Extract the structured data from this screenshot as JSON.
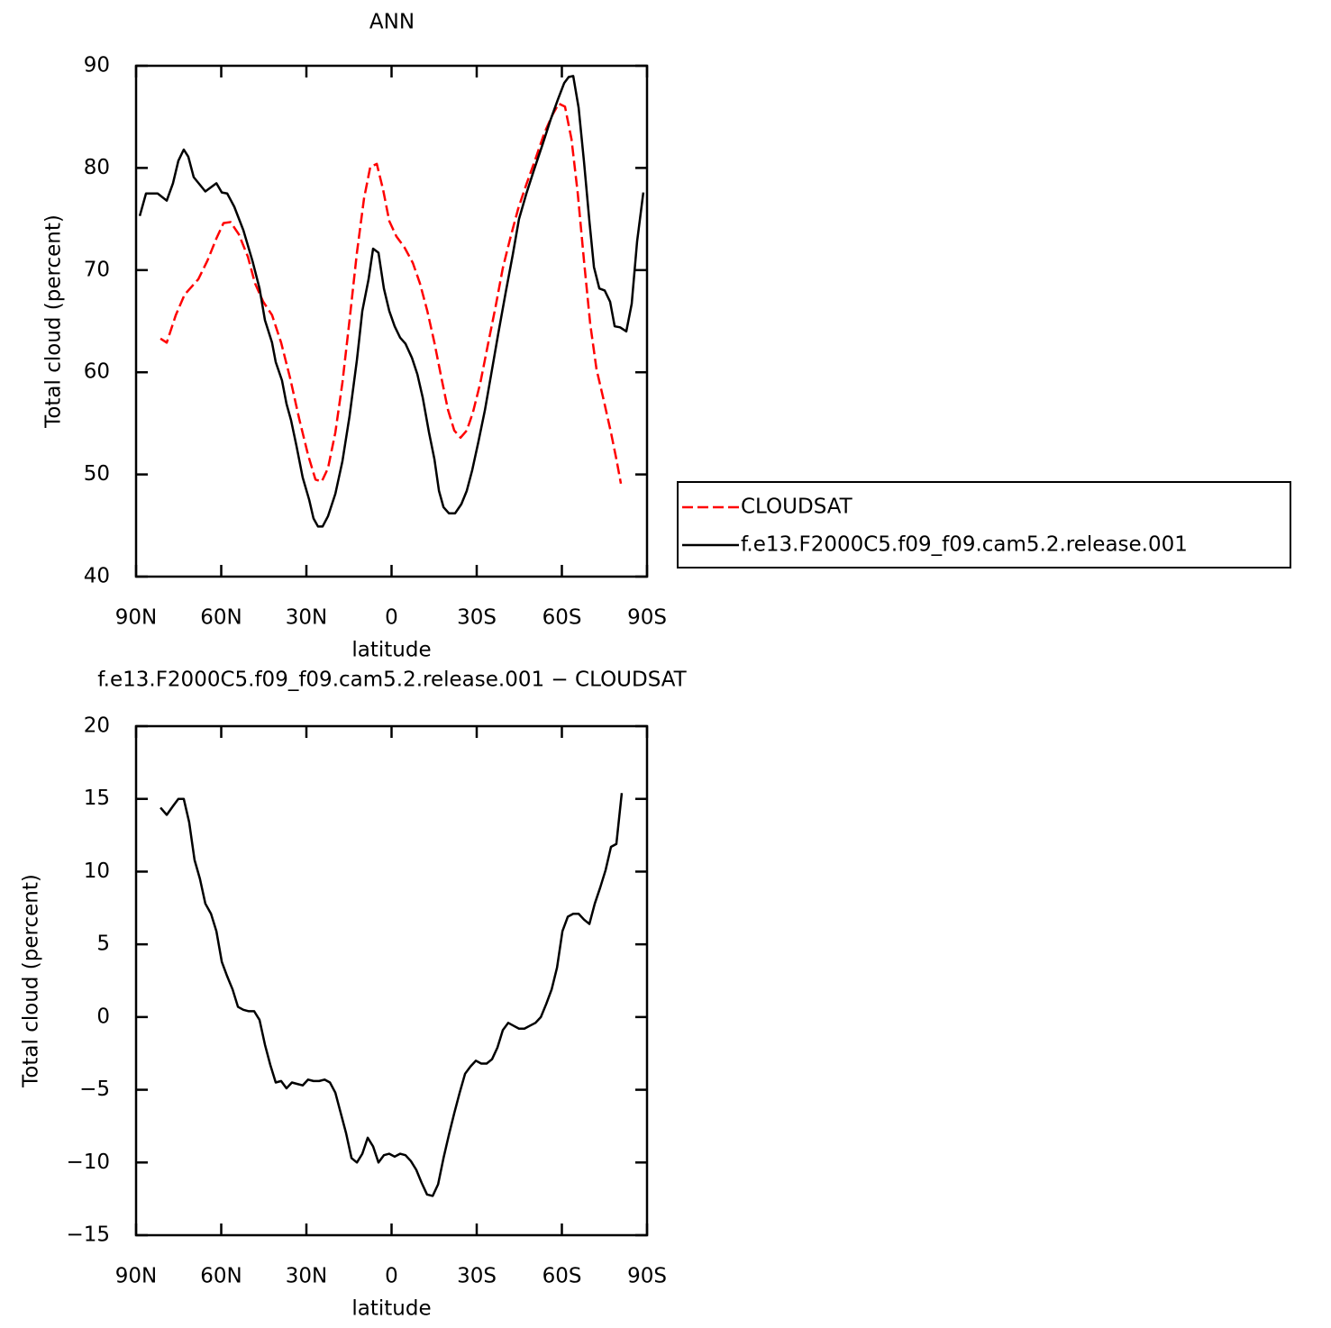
{
  "chart_data": [
    {
      "type": "line",
      "title": "ANN",
      "xlabel": "latitude",
      "ylabel": "Total cloud (percent)",
      "xlim": [
        90,
        -90
      ],
      "ylim": [
        40,
        90
      ],
      "xticks": [
        {
          "value": 90,
          "label": "90N"
        },
        {
          "value": 60,
          "label": "60N"
        },
        {
          "value": 30,
          "label": "30N"
        },
        0,
        {
          "value": -30,
          "label": "30S"
        },
        {
          "value": -60,
          "label": "60S"
        },
        {
          "value": -90,
          "label": "90S"
        }
      ],
      "yticks": [
        40,
        50,
        60,
        70,
        80,
        90
      ],
      "legend": "right",
      "series": [
        {
          "name": "CLOUDSAT",
          "color": "#ff0000",
          "linestyle": "dashed",
          "x": [
            81.4,
            79.2,
            76.0,
            72.9,
            68.1,
            64.9,
            61.7,
            59.2,
            56.7,
            53.8,
            50.6,
            48.1,
            45.2,
            42.1,
            38.9,
            35.7,
            32.5,
            29.4,
            26.8,
            24.6,
            22.4,
            19.8,
            17.3,
            14.8,
            12.2,
            9.7,
            7.5,
            5.2,
            3.0,
            0.8,
            -1.7,
            -4.6,
            -7.5,
            -10.0,
            -12.6,
            -15.1,
            -17.6,
            -19.9,
            -22.1,
            -24.3,
            -26.5,
            -28.7,
            -31.3,
            -33.8,
            -36.7,
            -39.2,
            -41.8,
            -44.6,
            -47.5,
            -50.6,
            -53.8,
            -56.7,
            -58.9,
            -61.1,
            -63.4,
            -65.6,
            -67.8,
            -70.0,
            -72.2,
            -74.8,
            -77.3,
            -79.2,
            -80.8
          ],
          "values": [
            63.3,
            62.9,
            65.6,
            67.6,
            69.1,
            70.9,
            73.1,
            74.6,
            74.7,
            73.5,
            71.3,
            68.7,
            66.9,
            65.6,
            62.9,
            59.4,
            55.4,
            51.9,
            49.5,
            49.3,
            50.6,
            54.1,
            59.0,
            65.1,
            71.7,
            77.0,
            80.1,
            80.4,
            77.9,
            74.8,
            73.3,
            72.2,
            70.7,
            68.7,
            66.0,
            62.9,
            59.4,
            56.3,
            54.3,
            53.6,
            54.3,
            56.1,
            59.0,
            62.5,
            66.5,
            70.2,
            73.1,
            76.0,
            78.4,
            80.8,
            83.4,
            85.2,
            86.3,
            86.0,
            82.8,
            77.5,
            70.9,
            64.7,
            60.3,
            57.2,
            54.1,
            51.5,
            49.1
          ]
        },
        {
          "name": "f.e13.F2000C5.f09_f09.cam5.2.release.001",
          "color": "#000000",
          "linestyle": "solid",
          "x": [
            88.7,
            86.5,
            82.4,
            79.2,
            77.0,
            75.1,
            73.2,
            71.6,
            69.7,
            65.6,
            61.7,
            59.8,
            57.9,
            55.4,
            52.2,
            49.0,
            46.5,
            44.6,
            42.1,
            40.8,
            38.6,
            37.0,
            35.4,
            33.5,
            31.3,
            29.0,
            27.5,
            25.9,
            24.3,
            22.4,
            19.8,
            17.3,
            14.8,
            12.2,
            10.3,
            8.1,
            6.5,
            4.6,
            2.7,
            0.8,
            -1.1,
            -3.0,
            -4.9,
            -7.2,
            -9.1,
            -11.0,
            -13.2,
            -15.1,
            -16.7,
            -18.3,
            -20.2,
            -22.4,
            -24.6,
            -26.5,
            -28.4,
            -30.6,
            -32.9,
            -35.1,
            -37.6,
            -40.2,
            -42.7,
            -44.9,
            -47.5,
            -50.3,
            -53.2,
            -56.0,
            -58.6,
            -60.8,
            -62.4,
            -64.0,
            -65.9,
            -67.8,
            -69.7,
            -71.3,
            -73.2,
            -75.1,
            -77.0,
            -78.6,
            -80.5,
            -82.7,
            -84.6,
            -86.5,
            -88.7
          ],
          "values": [
            75.3,
            77.5,
            77.5,
            76.8,
            78.5,
            80.7,
            81.8,
            81.1,
            79.1,
            77.7,
            78.5,
            77.6,
            77.5,
            76.2,
            73.9,
            70.9,
            68.2,
            65.1,
            62.9,
            61.0,
            59.2,
            56.9,
            55.3,
            52.8,
            49.7,
            47.5,
            45.7,
            44.9,
            44.9,
            45.9,
            48.1,
            51.3,
            55.7,
            61.2,
            66.0,
            69.1,
            72.1,
            71.7,
            68.2,
            66.0,
            64.5,
            63.4,
            62.8,
            61.4,
            59.8,
            57.5,
            54.1,
            51.5,
            48.4,
            46.8,
            46.2,
            46.2,
            47.1,
            48.4,
            50.4,
            53.2,
            56.3,
            59.8,
            63.8,
            67.8,
            71.5,
            75.0,
            77.5,
            79.9,
            82.3,
            84.7,
            86.7,
            88.3,
            88.9,
            89.0,
            85.9,
            80.6,
            74.8,
            70.3,
            68.2,
            68.0,
            66.9,
            64.5,
            64.4,
            64.0,
            66.7,
            72.8,
            77.6
          ]
        }
      ]
    },
    {
      "type": "line",
      "title": "f.e13.F2000C5.f09_f09.cam5.2.release.001 − CLOUDSAT",
      "xlabel": "latitude",
      "ylabel": "Total cloud (percent)",
      "xlim": [
        90,
        -90
      ],
      "ylim": [
        -15,
        20
      ],
      "xticks": [
        {
          "value": 90,
          "label": "90N"
        },
        {
          "value": 60,
          "label": "60N"
        },
        {
          "value": 30,
          "label": "30N"
        },
        0,
        {
          "value": -30,
          "label": "30S"
        },
        {
          "value": -60,
          "label": "60S"
        },
        {
          "value": -90,
          "label": "90S"
        }
      ],
      "yticks": [
        {
          "value": -15,
          "label": "−15"
        },
        {
          "value": -10,
          "label": "−10"
        },
        {
          "value": -5,
          "label": "−5"
        },
        0,
        5,
        10,
        15,
        20
      ],
      "color": "#000000",
      "x": [
        81.4,
        79.2,
        77.0,
        75.1,
        73.2,
        71.3,
        69.4,
        67.5,
        65.6,
        63.6,
        61.7,
        59.8,
        57.9,
        56.0,
        54.1,
        52.2,
        50.3,
        48.4,
        46.5,
        44.6,
        42.7,
        40.8,
        38.9,
        37.0,
        35.1,
        33.2,
        31.3,
        29.4,
        27.5,
        25.5,
        23.6,
        21.7,
        19.8,
        17.9,
        16.0,
        14.1,
        12.2,
        10.3,
        8.4,
        6.5,
        4.6,
        2.7,
        0.8,
        -1.1,
        -3.0,
        -4.9,
        -6.8,
        -8.7,
        -10.6,
        -12.5,
        -14.5,
        -16.4,
        -18.3,
        -20.2,
        -22.1,
        -24.0,
        -25.9,
        -27.8,
        -29.7,
        -31.6,
        -33.5,
        -35.4,
        -37.3,
        -39.2,
        -41.1,
        -43.0,
        -44.9,
        -46.8,
        -48.7,
        -50.7,
        -52.6,
        -54.5,
        -56.4,
        -58.3,
        -60.2,
        -62.1,
        -64.0,
        -65.9,
        -67.8,
        -69.7,
        -71.6,
        -73.5,
        -75.4,
        -77.3,
        -79.2,
        -81.1
      ],
      "values": [
        14.4,
        13.9,
        14.5,
        15.0,
        15.0,
        13.4,
        10.8,
        9.5,
        7.8,
        7.1,
        5.9,
        3.8,
        2.8,
        1.9,
        0.7,
        0.5,
        0.4,
        0.4,
        -0.2,
        -1.9,
        -3.3,
        -4.5,
        -4.4,
        -4.9,
        -4.5,
        -4.6,
        -4.7,
        -4.3,
        -4.4,
        -4.4,
        -4.3,
        -4.5,
        -5.2,
        -6.6,
        -8.0,
        -9.7,
        -10.0,
        -9.4,
        -8.3,
        -8.9,
        -10.0,
        -9.5,
        -9.4,
        -9.6,
        -9.4,
        -9.5,
        -9.9,
        -10.5,
        -11.4,
        -12.2,
        -12.3,
        -11.5,
        -9.7,
        -8.1,
        -6.6,
        -5.2,
        -3.9,
        -3.4,
        -3.0,
        -3.2,
        -3.2,
        -2.9,
        -2.1,
        -0.9,
        -0.4,
        -0.6,
        -0.8,
        -0.8,
        -0.6,
        -0.4,
        0.0,
        0.9,
        1.9,
        3.4,
        5.9,
        6.9,
        7.1,
        7.1,
        6.7,
        6.4,
        7.8,
        8.9,
        10.1,
        11.7,
        11.9,
        15.4
      ]
    }
  ]
}
